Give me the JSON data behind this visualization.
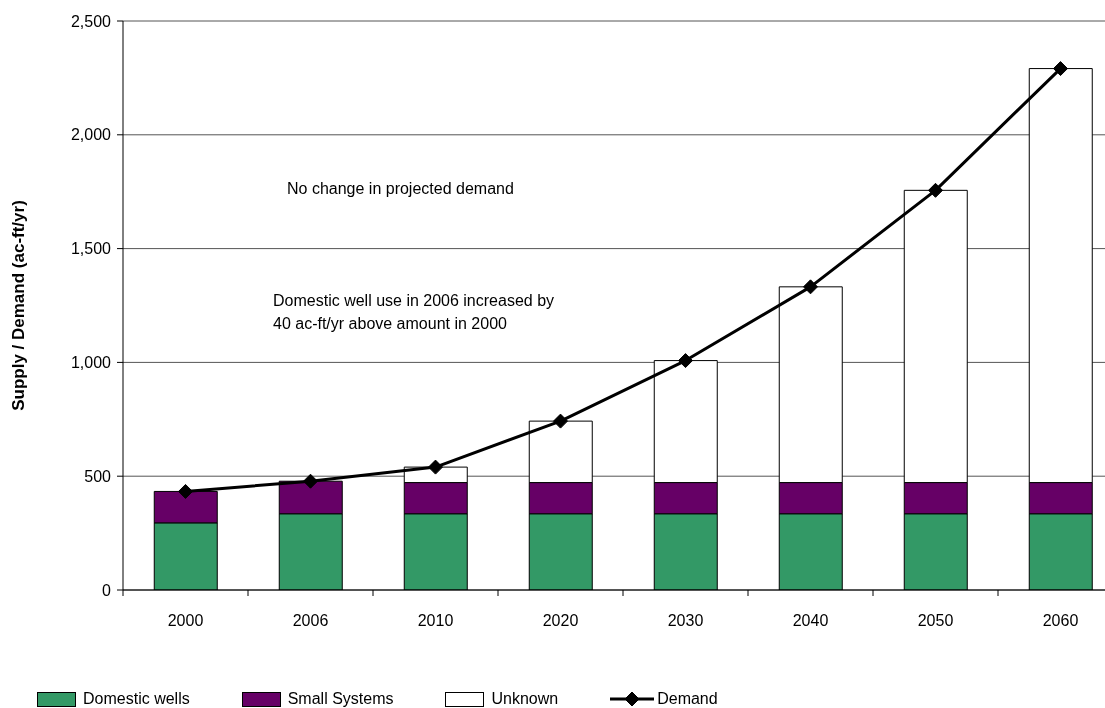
{
  "chart_data": {
    "type": "bar",
    "stacked": true,
    "ylabel": "Supply / Demand (ac-ft/yr)",
    "categories": [
      "2000",
      "2006",
      "2010",
      "2020",
      "2030",
      "2040",
      "2050",
      "2060"
    ],
    "series": [
      {
        "name": "Domestic wells",
        "color": "#339966",
        "values": [
          295,
          335,
          335,
          335,
          335,
          335,
          335,
          335
        ]
      },
      {
        "name": "Small Systems",
        "color": "#660066",
        "values": [
          138,
          143,
          137,
          137,
          137,
          137,
          137,
          137
        ]
      },
      {
        "name": "Unknown",
        "color": "#ffffff",
        "values": [
          0,
          0,
          68,
          270,
          536,
          860,
          1284,
          1819
        ]
      },
      {
        "name": "Demand",
        "type": "line",
        "color": "#000000",
        "marker": "diamond",
        "values": [
          433,
          478,
          540,
          742,
          1008,
          1332,
          1756,
          2291
        ]
      }
    ],
    "ylim": [
      0,
      2500
    ],
    "yticks": [
      0,
      500,
      {
        "value": 1000,
        "label": "1,000"
      },
      {
        "value": 1500,
        "label": "1,500"
      },
      {
        "value": 2000,
        "label": "2,000"
      },
      {
        "value": 2500,
        "label": "2,500"
      }
    ],
    "grid": "y",
    "legend": "bottom left",
    "annotations": [
      "No change in projected demand",
      "Domestic well use in 2006 increased by\n40 ac-ft/yr above amount in 2000"
    ]
  }
}
